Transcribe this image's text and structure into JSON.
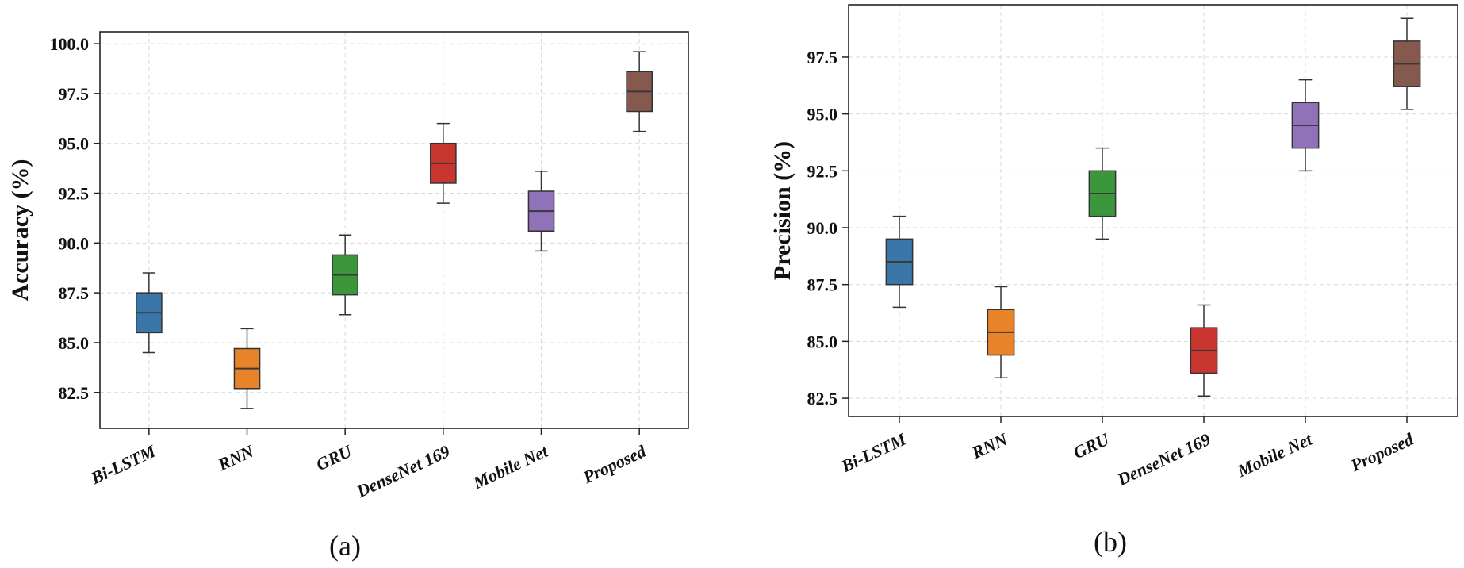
{
  "chart_data": [
    {
      "type": "box",
      "panel_label": "(a)",
      "ylabel": "Accuracy (%)",
      "categories": [
        "Bi-LSTM",
        "RNN",
        "GRU",
        "DenseNet 169",
        "Mobile Net",
        "Proposed"
      ],
      "colors": [
        "#3A76A8",
        "#E8832A",
        "#3C963C",
        "#C8362F",
        "#9072B8",
        "#85594E"
      ],
      "boxes": [
        {
          "whislo": 84.5,
          "q1": 85.5,
          "med": 86.5,
          "q3": 87.5,
          "whishi": 88.5
        },
        {
          "whislo": 81.7,
          "q1": 82.7,
          "med": 83.7,
          "q3": 84.7,
          "whishi": 85.7
        },
        {
          "whislo": 86.4,
          "q1": 87.4,
          "med": 88.4,
          "q3": 89.4,
          "whishi": 90.4
        },
        {
          "whislo": 92.0,
          "q1": 93.0,
          "med": 94.0,
          "q3": 95.0,
          "whishi": 96.0
        },
        {
          "whislo": 89.6,
          "q1": 90.6,
          "med": 91.6,
          "q3": 92.6,
          "whishi": 93.6
        },
        {
          "whislo": 95.6,
          "q1": 96.6,
          "med": 97.6,
          "q3": 98.6,
          "whishi": 99.6
        }
      ],
      "yticks": [
        "82.5",
        "85.0",
        "87.5",
        "90.0",
        "92.5",
        "95.0",
        "97.5",
        "100.0"
      ],
      "ytick_values": [
        82.5,
        85.0,
        87.5,
        90.0,
        92.5,
        95.0,
        97.5,
        100.0
      ],
      "ylim": [
        80.7,
        100.6
      ],
      "grid": true
    },
    {
      "type": "box",
      "panel_label": "(b)",
      "ylabel": "Precision (%)",
      "categories": [
        "Bi-LSTM",
        "RNN",
        "GRU",
        "DenseNet 169",
        "Mobile Net",
        "Proposed"
      ],
      "colors": [
        "#3A76A8",
        "#E8832A",
        "#3C963C",
        "#C8362F",
        "#9072B8",
        "#85594E"
      ],
      "boxes": [
        {
          "whislo": 86.5,
          "q1": 87.5,
          "med": 88.5,
          "q3": 89.5,
          "whishi": 90.5
        },
        {
          "whislo": 83.4,
          "q1": 84.4,
          "med": 85.4,
          "q3": 86.4,
          "whishi": 87.4
        },
        {
          "whislo": 89.5,
          "q1": 90.5,
          "med": 91.5,
          "q3": 92.5,
          "whishi": 93.5
        },
        {
          "whislo": 82.6,
          "q1": 83.6,
          "med": 84.6,
          "q3": 85.6,
          "whishi": 86.6
        },
        {
          "whislo": 92.5,
          "q1": 93.5,
          "med": 94.5,
          "q3": 95.5,
          "whishi": 96.5
        },
        {
          "whislo": 95.2,
          "q1": 96.2,
          "med": 97.2,
          "q3": 98.2,
          "whishi": 99.2
        }
      ],
      "yticks": [
        "82.5",
        "85.0",
        "87.5",
        "90.0",
        "92.5",
        "95.0",
        "97.5"
      ],
      "ytick_values": [
        82.5,
        85.0,
        87.5,
        90.0,
        92.5,
        95.0,
        97.5
      ],
      "ylim": [
        81.7,
        99.8
      ],
      "grid": true
    }
  ]
}
